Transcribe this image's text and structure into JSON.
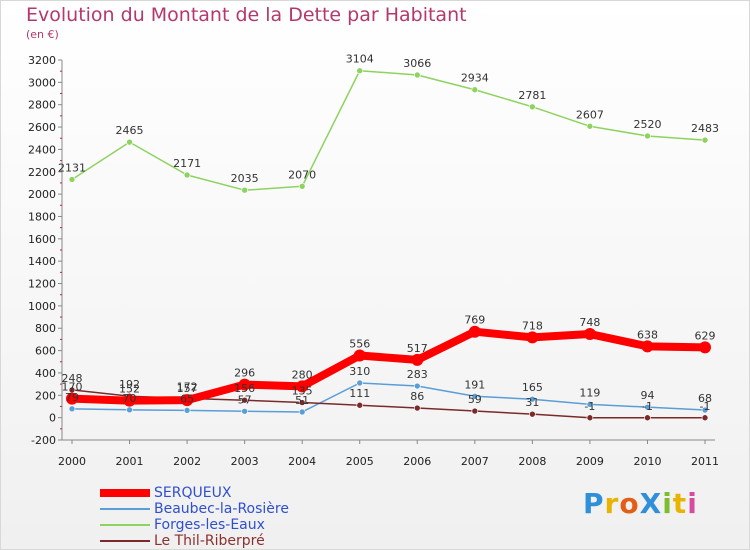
{
  "page": {
    "title": "Evolution du Montant de la Dette par Habitant",
    "unit": "(en €)",
    "logo": "ProXiti"
  },
  "chart_data": {
    "type": "line",
    "title": "Evolution du Montant de la Dette par Habitant",
    "subtitle": "(en €)",
    "xlabel": "",
    "ylabel": "",
    "x": [
      "2000",
      "2001",
      "2002",
      "2003",
      "2004",
      "2005",
      "2006",
      "2007",
      "2008",
      "2009",
      "2010",
      "2011"
    ],
    "ylim": [
      -200,
      3200
    ],
    "yticks": [
      -200,
      0,
      200,
      400,
      600,
      800,
      1000,
      1200,
      1400,
      1600,
      1800,
      2000,
      2200,
      2400,
      2600,
      2800,
      3000,
      3200
    ],
    "legend_position": "bottom-left",
    "series": [
      {
        "name": "SERQUEUX",
        "color": "#ff0000",
        "values": [
          170,
          152,
          157,
          296,
          280,
          556,
          517,
          769,
          718,
          748,
          638,
          629
        ]
      },
      {
        "name": "Beaubec-la-Rosière",
        "color": "#5a9ed6",
        "values": [
          79,
          70,
          65,
          57,
          51,
          310,
          283,
          191,
          165,
          119,
          94,
          68
        ]
      },
      {
        "name": "Forges-les-Eaux",
        "color": "#8dd35f",
        "values": [
          2131,
          2465,
          2171,
          2035,
          2070,
          3104,
          3066,
          2934,
          2781,
          2607,
          2520,
          2483
        ]
      },
      {
        "name": "Le Thil-Riberpré",
        "color": "#7a2a2a",
        "values": [
          248,
          192,
          172,
          156,
          135,
          111,
          86,
          59,
          31,
          -1,
          -1,
          -1
        ]
      }
    ]
  }
}
